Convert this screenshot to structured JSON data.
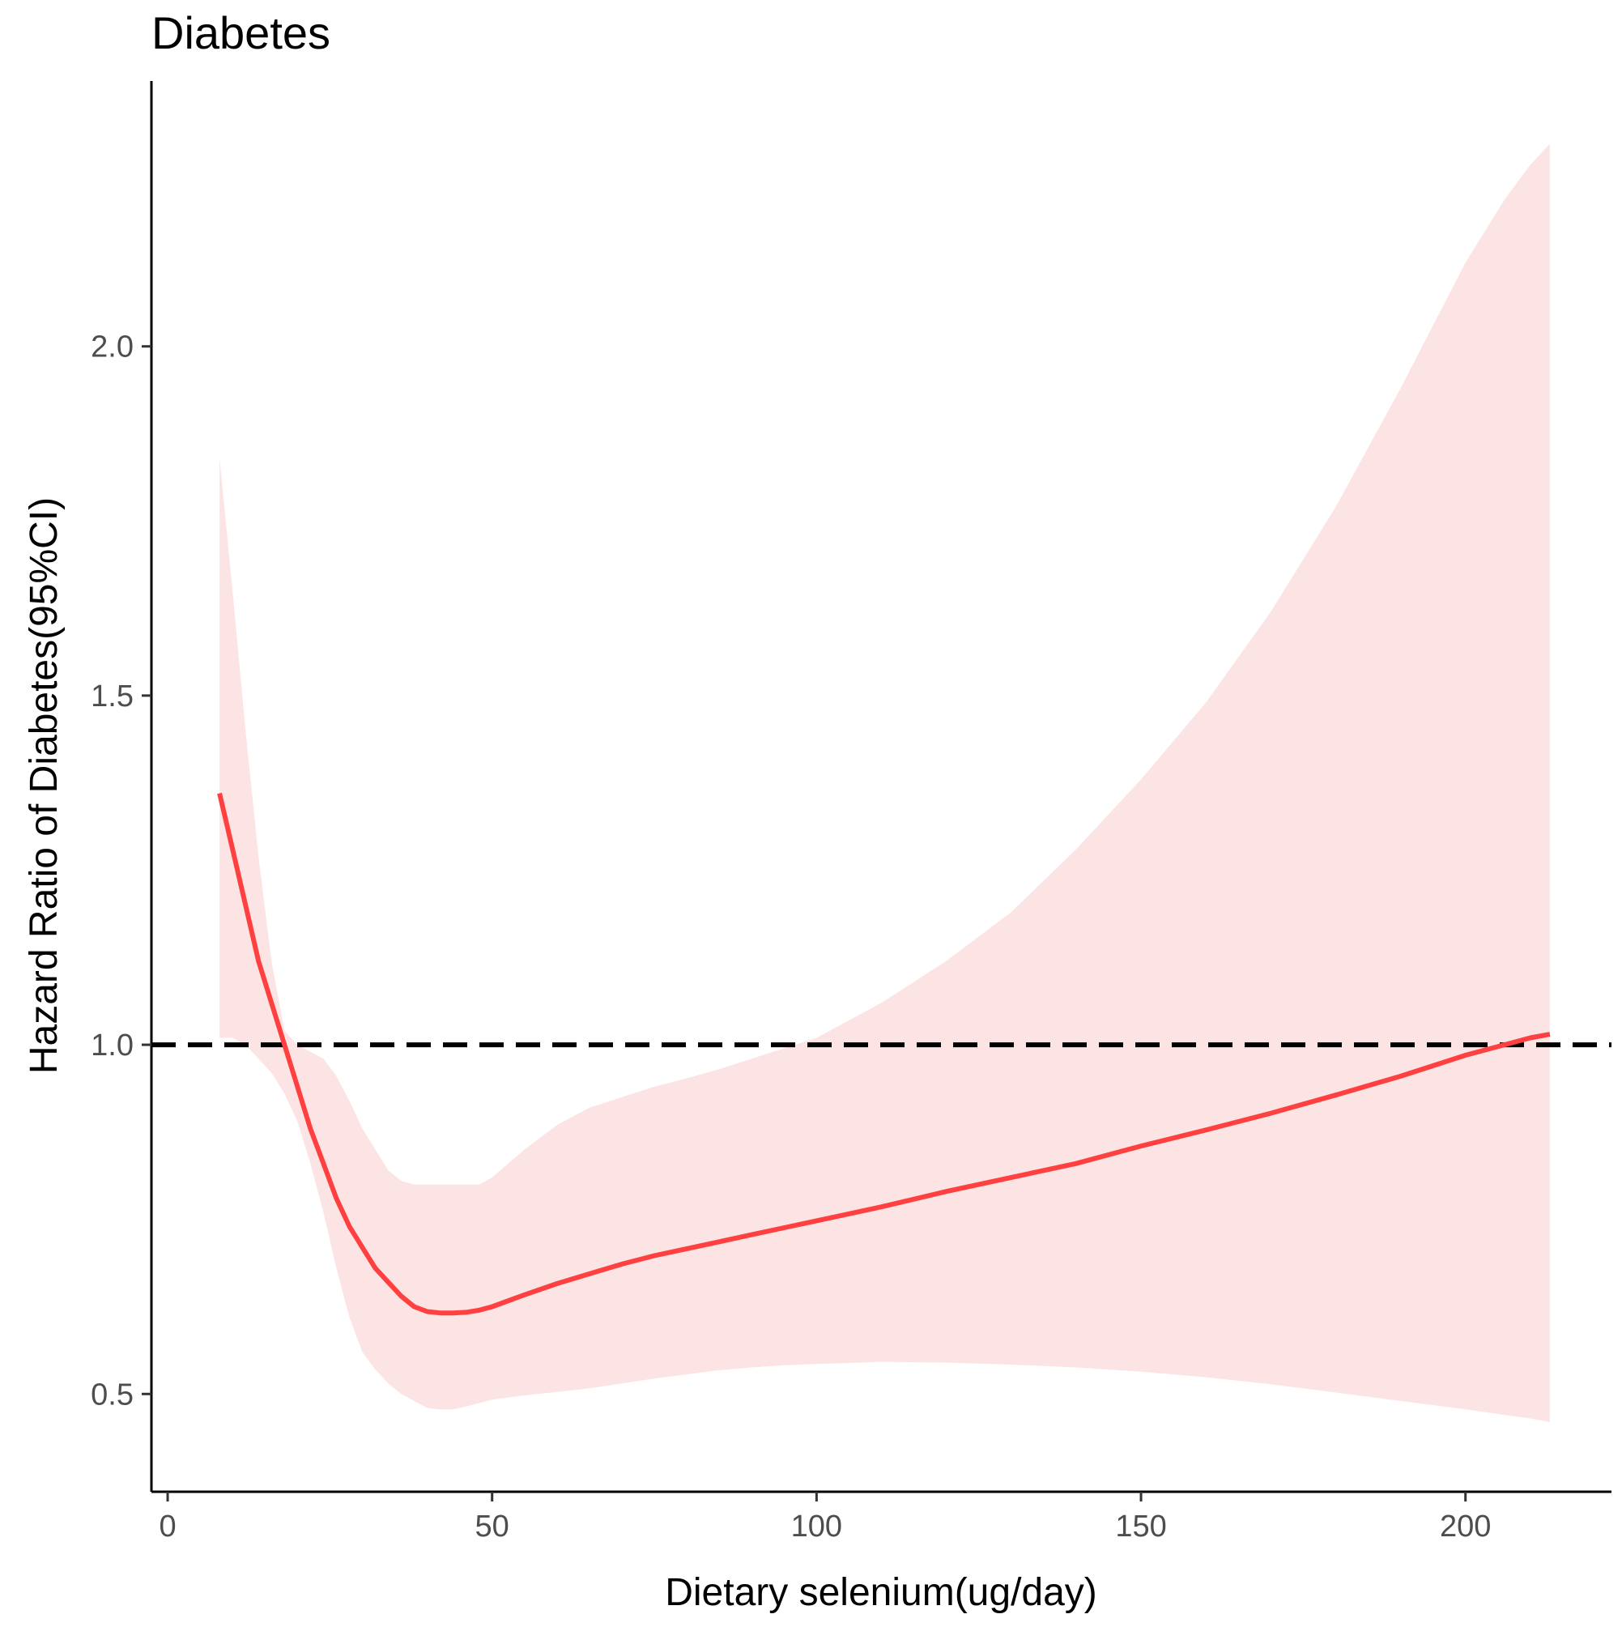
{
  "chart_data": {
    "type": "line",
    "title": "Diabetes",
    "xlabel": "Dietary selenium(ug/day)",
    "ylabel": "Hazard Ratio of Diabetes(95%CI)",
    "xlim": [
      -2.5,
      222.5
    ],
    "ylim": [
      0.36,
      2.38
    ],
    "x_ticks": [
      0,
      50,
      100,
      150,
      200
    ],
    "x_tick_labels": [
      "0",
      "50",
      "100",
      "150",
      "200"
    ],
    "y_ticks": [
      0.5,
      1.0,
      1.5,
      2.0
    ],
    "y_tick_labels": [
      "0.5",
      "1.0",
      "1.5",
      "2.0"
    ],
    "reference_line": {
      "y": 1.0,
      "style": "dashed"
    },
    "series": [
      {
        "name": "Hazard ratio",
        "color": "#ff4040",
        "x": [
          8,
          10,
          12,
          14,
          16,
          18,
          20,
          22,
          24,
          26,
          28,
          30,
          32,
          34,
          36,
          38,
          40,
          42,
          44,
          46,
          48,
          50,
          55,
          60,
          65,
          70,
          75,
          80,
          85,
          90,
          95,
          100,
          110,
          120,
          130,
          140,
          150,
          160,
          170,
          180,
          190,
          200,
          206,
          210,
          213
        ],
        "y": [
          1.36,
          1.28,
          1.2,
          1.12,
          1.06,
          1.0,
          0.94,
          0.88,
          0.83,
          0.78,
          0.74,
          0.71,
          0.68,
          0.66,
          0.64,
          0.625,
          0.618,
          0.616,
          0.616,
          0.617,
          0.62,
          0.625,
          0.642,
          0.658,
          0.672,
          0.686,
          0.698,
          0.708,
          0.718,
          0.728,
          0.738,
          0.748,
          0.768,
          0.79,
          0.81,
          0.83,
          0.855,
          0.878,
          0.902,
          0.928,
          0.955,
          0.985,
          1.0,
          1.01,
          1.015
        ]
      }
    ],
    "confidence_band": {
      "name": "95% CI",
      "color": "#fde4e4",
      "x": [
        8,
        10,
        12,
        14,
        16,
        18,
        20,
        22,
        24,
        26,
        28,
        30,
        32,
        34,
        36,
        38,
        40,
        42,
        44,
        46,
        48,
        50,
        55,
        60,
        65,
        70,
        75,
        80,
        85,
        90,
        95,
        100,
        110,
        120,
        130,
        140,
        150,
        160,
        170,
        180,
        190,
        200,
        206,
        210,
        213
      ],
      "lower": [
        1.01,
        1.01,
        1.0,
        0.98,
        0.96,
        0.93,
        0.89,
        0.83,
        0.76,
        0.68,
        0.61,
        0.56,
        0.535,
        0.515,
        0.5,
        0.49,
        0.48,
        0.478,
        0.478,
        0.482,
        0.487,
        0.492,
        0.498,
        0.503,
        0.508,
        0.515,
        0.522,
        0.528,
        0.534,
        0.538,
        0.541,
        0.543,
        0.546,
        0.545,
        0.542,
        0.538,
        0.532,
        0.524,
        0.514,
        0.502,
        0.49,
        0.478,
        0.47,
        0.465,
        0.46
      ],
      "upper": [
        1.84,
        1.65,
        1.45,
        1.27,
        1.12,
        1.02,
        1.0,
        0.99,
        0.98,
        0.955,
        0.92,
        0.88,
        0.85,
        0.82,
        0.805,
        0.8,
        0.8,
        0.8,
        0.8,
        0.8,
        0.8,
        0.81,
        0.85,
        0.885,
        0.91,
        0.925,
        0.94,
        0.952,
        0.965,
        0.98,
        0.995,
        1.01,
        1.06,
        1.12,
        1.19,
        1.28,
        1.38,
        1.49,
        1.62,
        1.77,
        1.94,
        2.12,
        2.21,
        2.26,
        2.29
      ]
    }
  }
}
